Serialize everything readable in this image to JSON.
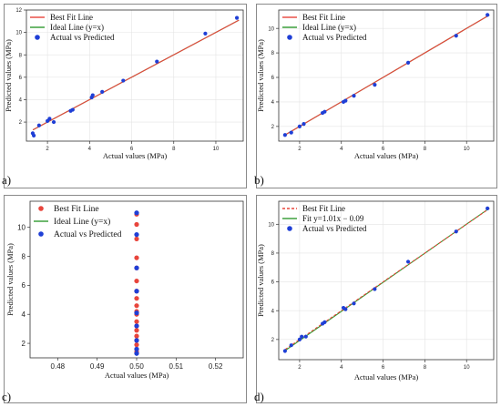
{
  "panels": [
    {
      "letter": "a)"
    },
    {
      "letter": "b)"
    },
    {
      "letter": "c)"
    },
    {
      "letter": "d)"
    }
  ],
  "chart_data": [
    {
      "id": "a",
      "type": "scatter",
      "xlabel": "Actual values (MPa)",
      "ylabel": "Predicted values (MPa)",
      "xlim": [
        1.0,
        11.3
      ],
      "ylim": [
        0.3,
        12.0
      ],
      "xticks": [
        2,
        4,
        6,
        8,
        10
      ],
      "yticks": [
        2,
        4,
        6,
        8,
        10,
        12
      ],
      "grid": true,
      "legend_position": "top-left",
      "legend": [
        {
          "label": "Best Fit Line",
          "kind": "line",
          "color": "#e8453c"
        },
        {
          "label": "Ideal Line (y=x)",
          "kind": "line",
          "color": "#2f9a2f"
        },
        {
          "label": "Actual vs Predicted",
          "kind": "dot",
          "color": "#1f3fd6"
        }
      ],
      "lines": [
        {
          "kind": "ideal",
          "color": "#2f9a2f",
          "dashed": false,
          "slope": 1,
          "intercept": 0
        },
        {
          "kind": "fit",
          "color": "#e8453c",
          "dashed": false,
          "slope": 1,
          "intercept": 0
        }
      ],
      "points": [
        [
          1.3,
          1.0
        ],
        [
          1.35,
          0.8
        ],
        [
          1.6,
          1.7
        ],
        [
          2.0,
          2.1
        ],
        [
          2.1,
          2.3
        ],
        [
          2.3,
          2.0
        ],
        [
          3.1,
          3.0
        ],
        [
          3.2,
          3.1
        ],
        [
          4.1,
          4.2
        ],
        [
          4.15,
          4.4
        ],
        [
          4.6,
          4.7
        ],
        [
          5.6,
          5.7
        ],
        [
          7.2,
          7.4
        ],
        [
          9.5,
          9.9
        ],
        [
          11.0,
          11.3
        ]
      ],
      "point_color": "#1f3fd6"
    },
    {
      "id": "b",
      "type": "scatter",
      "xlabel": "Actual values (MPa)",
      "ylabel": "Predicted values (MPa)",
      "xlim": [
        1.0,
        11.3
      ],
      "ylim": [
        0.8,
        11.5
      ],
      "xticks": [
        2,
        4,
        6,
        8,
        10
      ],
      "yticks": [
        2,
        4,
        6,
        8,
        10
      ],
      "grid": true,
      "legend_position": "top-left",
      "legend": [
        {
          "label": "Best Fit Line",
          "kind": "line",
          "color": "#e8453c"
        },
        {
          "label": "Ideal Line (y=x)",
          "kind": "line",
          "color": "#2f9a2f"
        },
        {
          "label": "Actual vs Predicted",
          "kind": "dot",
          "color": "#1f3fd6"
        }
      ],
      "lines": [
        {
          "kind": "ideal",
          "color": "#2f9a2f",
          "dashed": false,
          "slope": 1,
          "intercept": 0
        },
        {
          "kind": "fit",
          "color": "#e8453c",
          "dashed": false,
          "slope": 1,
          "intercept": 0
        }
      ],
      "points": [
        [
          1.3,
          1.3
        ],
        [
          1.6,
          1.5
        ],
        [
          2.0,
          2.0
        ],
        [
          2.2,
          2.2
        ],
        [
          3.1,
          3.1
        ],
        [
          3.2,
          3.2
        ],
        [
          4.1,
          4.0
        ],
        [
          4.2,
          4.1
        ],
        [
          4.6,
          4.5
        ],
        [
          5.6,
          5.4
        ],
        [
          7.2,
          7.2
        ],
        [
          9.5,
          9.4
        ],
        [
          11.0,
          11.1
        ]
      ],
      "point_color": "#1f3fd6"
    },
    {
      "id": "c",
      "type": "scatter",
      "xlabel": "Actual values (MPa)",
      "ylabel": "Predicted values (MPa)",
      "xlim": [
        0.473,
        0.527
      ],
      "ylim": [
        1.0,
        11.8
      ],
      "xticks": [
        0.48,
        0.49,
        0.5,
        0.51,
        0.52
      ],
      "xtick_labels": [
        "0.48",
        "0.49",
        "0.50",
        "0.51",
        "0.52"
      ],
      "yticks": [
        2,
        4,
        6,
        8,
        10
      ],
      "grid": false,
      "legend_position": "top-left",
      "legend": [
        {
          "label": "Best Fit Line",
          "kind": "dot",
          "color": "#e8453c"
        },
        {
          "label": "Ideal Line (y=x)",
          "kind": "line",
          "color": "#2f9a2f"
        },
        {
          "label": "Actual vs Predicted",
          "kind": "dot",
          "color": "#1f3fd6"
        }
      ],
      "lines": [],
      "series": [
        {
          "name": "Best Fit Line",
          "color": "#e8453c",
          "points": [
            [
              0.5,
              10.9
            ],
            [
              0.5,
              10.2
            ],
            [
              0.5,
              9.2
            ],
            [
              0.5,
              7.9
            ],
            [
              0.5,
              7.2
            ],
            [
              0.5,
              6.3
            ],
            [
              0.5,
              5.6
            ],
            [
              0.5,
              5.1
            ],
            [
              0.5,
              4.6
            ],
            [
              0.5,
              4.2
            ],
            [
              0.5,
              4.0
            ],
            [
              0.5,
              3.5
            ],
            [
              0.5,
              3.2
            ],
            [
              0.5,
              2.9
            ],
            [
              0.5,
              2.5
            ],
            [
              0.5,
              2.2
            ],
            [
              0.5,
              1.9
            ],
            [
              0.5,
              1.6
            ],
            [
              0.5,
              1.4
            ]
          ]
        },
        {
          "name": "Actual vs Predicted",
          "color": "#1f3fd6",
          "points": [
            [
              0.5,
              11.0
            ],
            [
              0.5,
              9.5
            ],
            [
              0.5,
              7.2
            ],
            [
              0.5,
              5.6
            ],
            [
              0.5,
              4.1
            ],
            [
              0.5,
              3.2
            ],
            [
              0.5,
              2.2
            ],
            [
              0.5,
              1.6
            ],
            [
              0.5,
              1.3
            ]
          ]
        }
      ]
    },
    {
      "id": "d",
      "type": "scatter",
      "xlabel": "Actual values (MPa)",
      "ylabel": "Predicted values (MPa)",
      "xlim": [
        1.0,
        11.3
      ],
      "ylim": [
        0.6,
        11.6
      ],
      "xticks": [
        2,
        4,
        6,
        8,
        10
      ],
      "yticks": [
        2,
        4,
        6,
        8,
        10
      ],
      "grid": true,
      "legend_position": "top-left",
      "legend": [
        {
          "label": "Best Fit Line",
          "kind": "dashed",
          "color": "#e8453c"
        },
        {
          "label": "Fit y=1.01x − 0.09",
          "kind": "line",
          "color": "#2f9a2f"
        },
        {
          "label": "Actual vs Predicted",
          "kind": "dot",
          "color": "#1f3fd6"
        }
      ],
      "lines": [
        {
          "kind": "fit",
          "color": "#2f9a2f",
          "dashed": false,
          "slope": 1.01,
          "intercept": -0.09
        },
        {
          "kind": "best",
          "color": "#e8453c",
          "dashed": true,
          "slope": 1.0,
          "intercept": 0
        }
      ],
      "points": [
        [
          1.3,
          1.2
        ],
        [
          1.6,
          1.6
        ],
        [
          2.0,
          2.0
        ],
        [
          2.1,
          2.2
        ],
        [
          2.3,
          2.2
        ],
        [
          3.1,
          3.1
        ],
        [
          3.2,
          3.2
        ],
        [
          4.1,
          4.2
        ],
        [
          4.2,
          4.1
        ],
        [
          4.6,
          4.5
        ],
        [
          5.6,
          5.5
        ],
        [
          7.2,
          7.4
        ],
        [
          9.5,
          9.5
        ],
        [
          11.0,
          11.1
        ]
      ],
      "point_color": "#1f3fd6"
    }
  ]
}
